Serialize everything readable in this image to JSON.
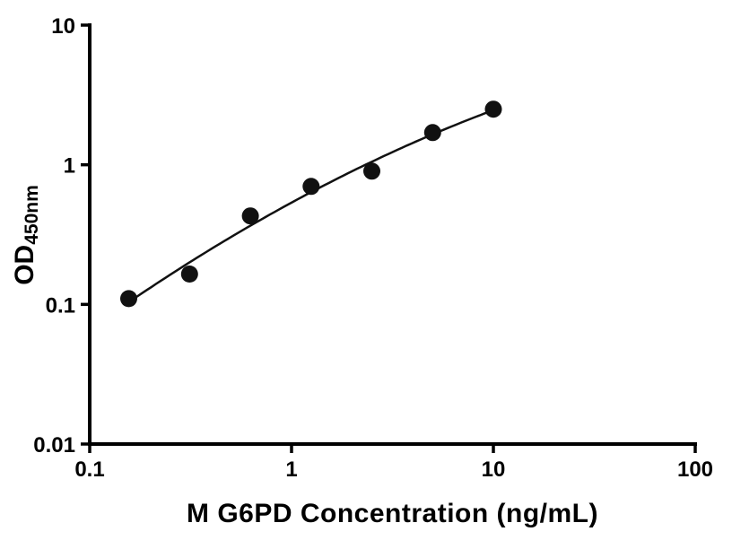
{
  "chart_data": {
    "type": "scatter",
    "title": "",
    "xlabel": "M G6PD Concentration (ng/mL)",
    "ylabel_main": "OD",
    "ylabel_sub": "450nm",
    "x_scale": "log",
    "y_scale": "log",
    "xlim": [
      0.1,
      100
    ],
    "ylim": [
      0.01,
      10
    ],
    "grid": false,
    "legend": "none",
    "x": [
      0.156,
      0.3125,
      0.625,
      1.25,
      2.5,
      5,
      10
    ],
    "y": [
      0.11,
      0.165,
      0.43,
      0.7,
      0.9,
      1.7,
      2.5
    ],
    "x_ticks": [
      {
        "value": 0.1,
        "label": "0.1"
      },
      {
        "value": 1,
        "label": "1"
      },
      {
        "value": 10,
        "label": "10"
      },
      {
        "value": 100,
        "label": "100"
      }
    ],
    "y_ticks": [
      {
        "value": 0.01,
        "label": "0.01"
      },
      {
        "value": 0.1,
        "label": "0.1"
      },
      {
        "value": 1,
        "label": "1"
      },
      {
        "value": 10,
        "label": "10"
      }
    ],
    "fit_curve": {
      "type": "quadratic_loglog",
      "description": "log10(y) = a + b*log10(x) + c*log10(x)^2",
      "a": -0.271,
      "b": 0.785,
      "c": -0.123,
      "x_range": [
        0.156,
        10
      ]
    },
    "marker": {
      "shape": "circle",
      "radius_px": 9.5,
      "color": "#111111"
    },
    "line_color": "#111111",
    "axis_color": "#000000",
    "background": "#ffffff"
  }
}
